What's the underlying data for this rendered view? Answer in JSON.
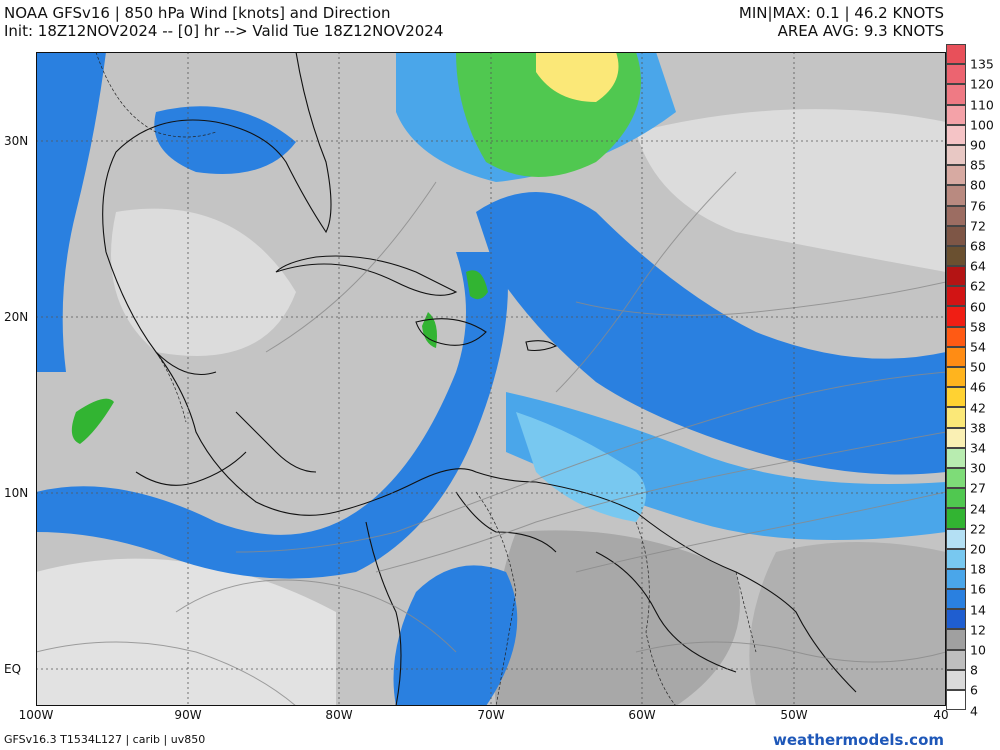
{
  "header": {
    "line1": "NOAA GFSv16 |  850 hPa Wind [knots] and Direction",
    "line2": "Init: 18Z12NOV2024 -- [0] hr --> Valid Tue 18Z12NOV2024",
    "minmax": "MIN|MAX: 0.1 | 46.2 KNOTS",
    "area_avg": "AREA AVG: 9.3 KNOTS"
  },
  "axes": {
    "lat_labels": [
      "30N",
      "20N",
      "10N",
      "EQ"
    ],
    "lon_labels": [
      "100W",
      "90W",
      "80W",
      "70W",
      "60W",
      "50W",
      "40"
    ]
  },
  "colorbar": {
    "labels": [
      "135",
      "120",
      "110",
      "100",
      "90",
      "85",
      "80",
      "76",
      "72",
      "68",
      "64",
      "62",
      "60",
      "58",
      "54",
      "50",
      "46",
      "42",
      "38",
      "34",
      "30",
      "27",
      "24",
      "22",
      "20",
      "18",
      "16",
      "14",
      "12",
      "10",
      "8",
      "6",
      "4"
    ],
    "colors": [
      "#e8505a",
      "#ec6470",
      "#ef7a84",
      "#f4a2a8",
      "#f5c4c6",
      "#e8c8c4",
      "#d7aaa2",
      "#b98a80",
      "#9c6d62",
      "#7e5646",
      "#6a5030",
      "#b41414",
      "#d21414",
      "#f01e14",
      "#ff5a14",
      "#ff8c14",
      "#ffb41e",
      "#ffd232",
      "#fbe878",
      "#faf0b4",
      "#b8ecb0",
      "#7edc78",
      "#50c850",
      "#32b432",
      "#b4e0f4",
      "#78c8f0",
      "#4aa6ea",
      "#2a80e0",
      "#1f5ed0",
      "#a0a0a0",
      "#bebebe",
      "#dadada",
      "#ffffff"
    ]
  },
  "footer": {
    "left": "GFSv16.3 T1534L127 | carib | uv850",
    "right": "weathermodels.com"
  }
}
